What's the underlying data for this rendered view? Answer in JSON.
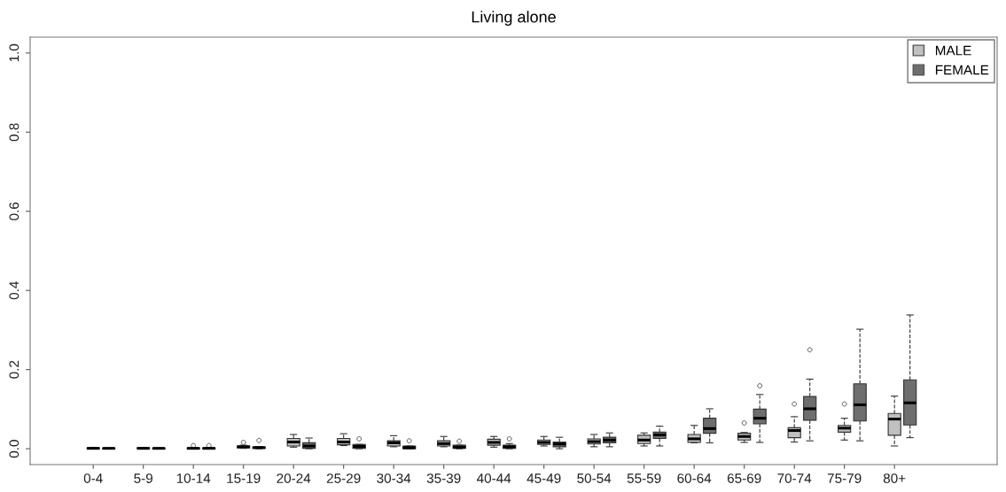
{
  "chart_data": {
    "type": "box",
    "title": "Living alone",
    "categories": [
      "0-4",
      "5-9",
      "10-14",
      "15-19",
      "20-24",
      "25-29",
      "30-34",
      "35-39",
      "40-44",
      "45-49",
      "50-54",
      "55-59",
      "60-64",
      "65-69",
      "70-74",
      "75-79",
      "80+"
    ],
    "ylim": [
      -0.04,
      1.04
    ],
    "yticks": [
      {
        "value": 0,
        "label": "0.0"
      },
      0.2,
      0.4,
      0.6,
      0.8,
      {
        "value": 1,
        "label": "1.0"
      }
    ],
    "grid": false,
    "legend": "top right",
    "line_style": "dashed",
    "series": [
      {
        "name": "MALE",
        "color": "#c0c0c0",
        "boxes": [
          {
            "low": 0,
            "q1": 0,
            "median": 0.001,
            "q3": 0.002,
            "high": 0.003
          },
          {
            "low": 0,
            "q1": 0.001,
            "median": 0.001,
            "q3": 0.002,
            "high": 0.003
          },
          {
            "low": 0,
            "q1": 0,
            "median": 0.001,
            "q3": 0.002,
            "high": 0.003,
            "outliers": [
              0.008
            ]
          },
          {
            "low": 0.001,
            "q1": 0.002,
            "median": 0.005,
            "q3": 0.007,
            "high": 0.009,
            "outliers": [
              0.016
            ]
          },
          {
            "low": 0.004,
            "q1": 0.007,
            "median": 0.017,
            "q3": 0.026,
            "high": 0.036
          },
          {
            "low": 0.008,
            "q1": 0.01,
            "median": 0.017,
            "q3": 0.026,
            "high": 0.038
          },
          {
            "low": 0.005,
            "q1": 0.007,
            "median": 0.015,
            "q3": 0.02,
            "high": 0.033
          },
          {
            "low": 0.005,
            "q1": 0.007,
            "median": 0.013,
            "q3": 0.02,
            "high": 0.031
          },
          {
            "low": 0.004,
            "q1": 0.009,
            "median": 0.016,
            "q3": 0.024,
            "high": 0.031
          },
          {
            "low": 0.007,
            "q1": 0.011,
            "median": 0.016,
            "q3": 0.022,
            "high": 0.031
          },
          {
            "low": 0.005,
            "q1": 0.012,
            "median": 0.018,
            "q3": 0.025,
            "high": 0.036
          },
          {
            "low": 0.007,
            "q1": 0.013,
            "median": 0.022,
            "q3": 0.034,
            "high": 0.04
          },
          {
            "low": 0.015,
            "q1": 0.016,
            "median": 0.025,
            "q3": 0.036,
            "high": 0.059
          },
          {
            "low": 0.016,
            "q1": 0.022,
            "median": 0.031,
            "q3": 0.039,
            "high": 0.041,
            "outliers": [
              0.065
            ]
          },
          {
            "low": 0.017,
            "q1": 0.028,
            "median": 0.046,
            "q3": 0.053,
            "high": 0.081,
            "outliers": [
              0.113
            ]
          },
          {
            "low": 0.022,
            "q1": 0.042,
            "median": 0.052,
            "q3": 0.059,
            "high": 0.077,
            "outliers": [
              0.113
            ]
          },
          {
            "low": 0.007,
            "q1": 0.034,
            "median": 0.075,
            "q3": 0.089,
            "high": 0.133
          }
        ]
      },
      {
        "name": "FEMALE",
        "color": "#6e6e6e",
        "boxes": [
          {
            "low": 0,
            "q1": 0,
            "median": 0.001,
            "q3": 0.001,
            "high": 0.002
          },
          {
            "low": 0,
            "q1": 0,
            "median": 0.001,
            "q3": 0.001,
            "high": 0.002
          },
          {
            "low": 0,
            "q1": 0,
            "median": 0.001,
            "q3": 0.002,
            "high": 0.003,
            "outliers": [
              0.008
            ]
          },
          {
            "low": 0,
            "q1": 0.001,
            "median": 0.003,
            "q3": 0.004,
            "high": 0.005,
            "outliers": [
              0.021
            ]
          },
          {
            "low": 0,
            "q1": 0.001,
            "median": 0.007,
            "q3": 0.015,
            "high": 0.027
          },
          {
            "low": 0,
            "q1": 0.001,
            "median": 0.006,
            "q3": 0.011,
            "high": 0.011,
            "outliers": [
              0.025
            ]
          },
          {
            "low": 0,
            "q1": 0,
            "median": 0.003,
            "q3": 0.007,
            "high": 0.007,
            "outliers": [
              0.02
            ]
          },
          {
            "low": 0,
            "q1": 0.001,
            "median": 0.004,
            "q3": 0.009,
            "high": 0.009,
            "outliers": [
              0.019
            ]
          },
          {
            "low": 0,
            "q1": 0.001,
            "median": 0.005,
            "q3": 0.009,
            "high": 0.013,
            "outliers": [
              0.025
            ]
          },
          {
            "low": 0,
            "q1": 0.005,
            "median": 0.012,
            "q3": 0.017,
            "high": 0.029
          },
          {
            "low": 0.005,
            "q1": 0.015,
            "median": 0.022,
            "q3": 0.029,
            "high": 0.04
          },
          {
            "low": 0.007,
            "q1": 0.026,
            "median": 0.035,
            "q3": 0.042,
            "high": 0.057
          },
          {
            "low": 0.015,
            "q1": 0.039,
            "median": 0.051,
            "q3": 0.077,
            "high": 0.101
          },
          {
            "low": 0.016,
            "q1": 0.063,
            "median": 0.077,
            "q3": 0.1,
            "high": 0.137,
            "outliers": [
              0.159
            ]
          },
          {
            "low": 0.02,
            "q1": 0.072,
            "median": 0.101,
            "q3": 0.132,
            "high": 0.176,
            "outliers": [
              0.25
            ]
          },
          {
            "low": 0.02,
            "q1": 0.07,
            "median": 0.111,
            "q3": 0.164,
            "high": 0.302
          },
          {
            "low": 0.028,
            "q1": 0.06,
            "median": 0.116,
            "q3": 0.174,
            "high": 0.338
          }
        ]
      }
    ]
  }
}
